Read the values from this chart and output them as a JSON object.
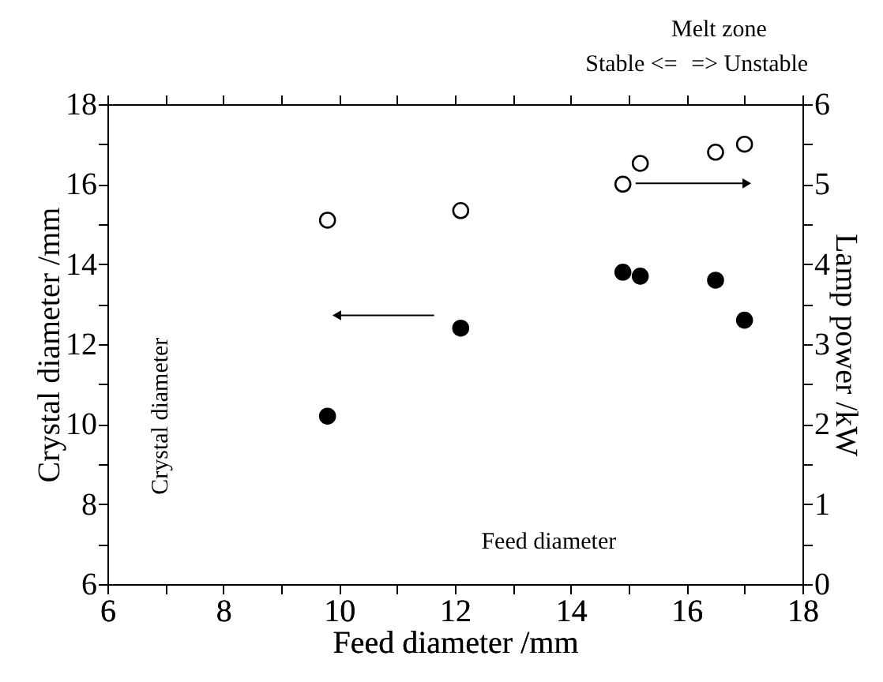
{
  "chart_data": {
    "type": "scatter",
    "xlabel": "Feed diameter /mm",
    "ylabel": "Crystal diameter /mm",
    "y2label": "Lamp power /kW",
    "annotations": [
      "Melt zone",
      "Stable <=",
      "=> Unstable",
      "Crystal diameter",
      "Feed diameter"
    ],
    "xlim": [
      6,
      18
    ],
    "xticks": [
      6,
      {
        "value": 7,
        "label": null
      },
      8,
      {
        "value": 9,
        "label": null
      },
      10,
      {
        "value": 11,
        "label": null
      },
      12,
      {
        "value": 13,
        "label": null
      },
      14,
      {
        "value": 15,
        "label": null
      },
      16,
      {
        "value": 17,
        "label": null
      },
      18
    ],
    "ylim": [
      6,
      18
    ],
    "yticks": [
      6,
      {
        "value": 7,
        "label": null
      },
      8,
      {
        "value": 9,
        "label": null
      },
      10,
      {
        "value": 11,
        "label": null
      },
      12,
      {
        "value": 13,
        "label": null
      },
      14,
      {
        "value": 15,
        "label": null
      },
      16,
      {
        "value": 17,
        "label": null
      },
      18
    ],
    "y2lim": [
      0,
      6
    ],
    "y2ticks": [
      0,
      {
        "value": 0.5,
        "label": null
      },
      1,
      {
        "value": 1.5,
        "label": null
      },
      2,
      {
        "value": 2.5,
        "label": null
      },
      3,
      {
        "value": 3.5,
        "label": null
      },
      4,
      {
        "value": 4.5,
        "label": null
      },
      5,
      {
        "value": 5.5,
        "label": null
      },
      6
    ],
    "grid": false,
    "legend": false,
    "marker": "circle",
    "series": [
      {
        "color": "#000000",
        "x": [
          9.8,
          12.1,
          14.9,
          15.2,
          16.5,
          17.0
        ],
        "values": [
          10.2,
          12.4,
          13.8,
          13.7,
          13.6,
          12.6
        ]
      },
      {
        "color": "#ffffff",
        "axis": "y2",
        "x": [
          9.8,
          12.1,
          14.9,
          15.2,
          16.5,
          17.0
        ],
        "values": [
          4.55,
          4.67,
          5.0,
          5.26,
          5.4,
          5.5
        ]
      }
    ]
  }
}
